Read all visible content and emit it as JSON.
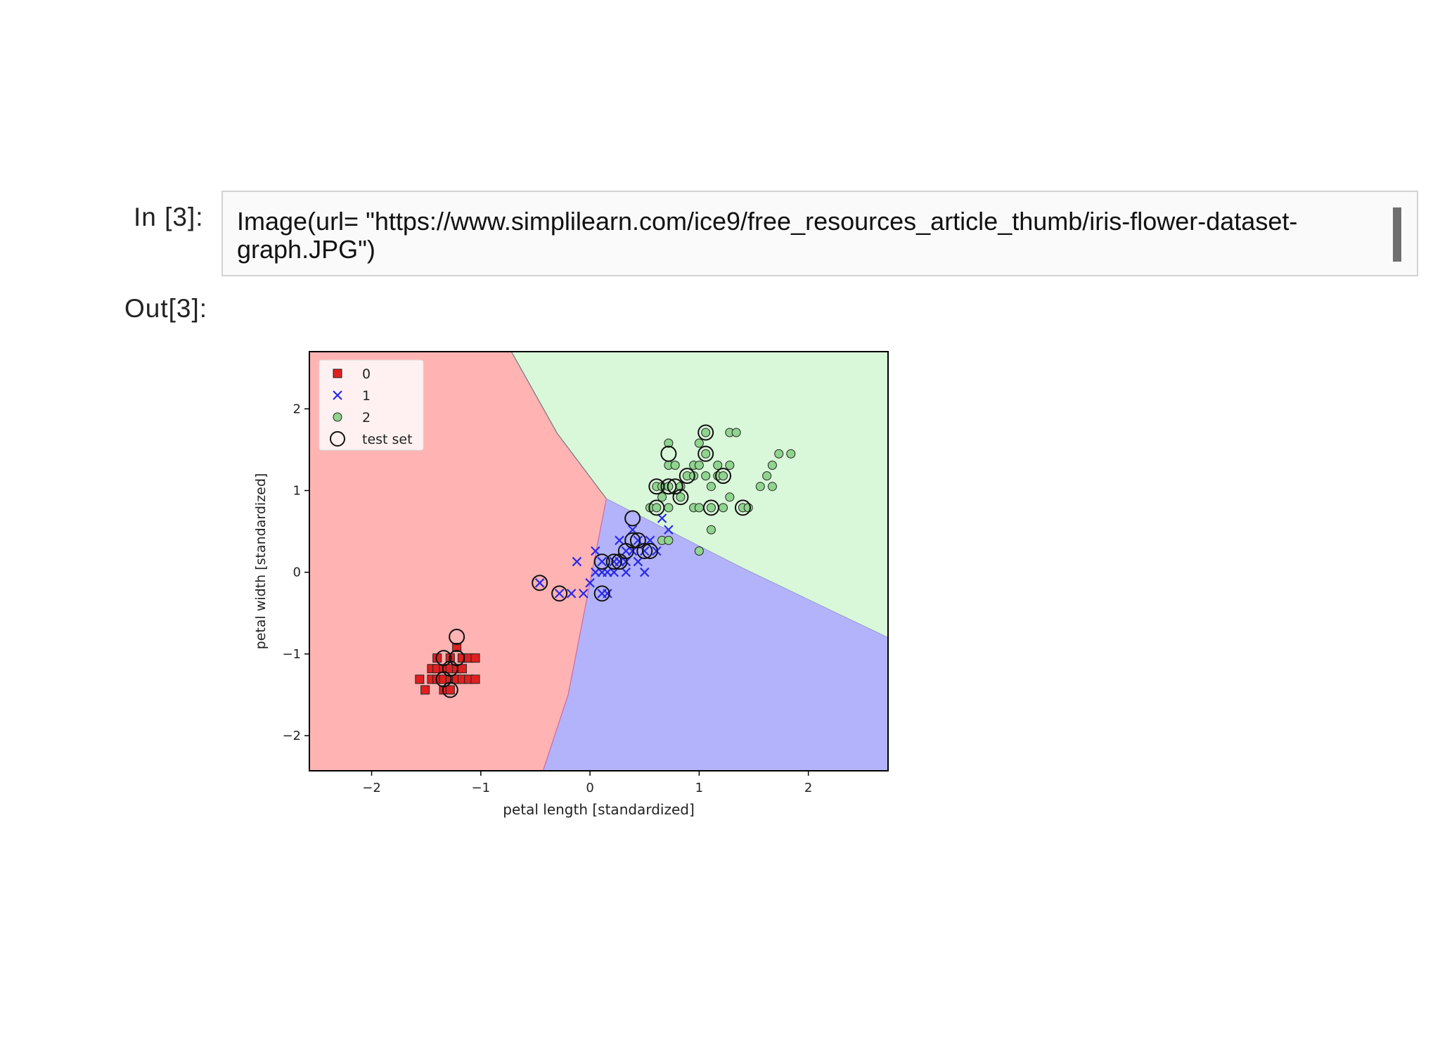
{
  "notebook": {
    "input_prompt": "In [3]:",
    "output_prompt": "Out[3]:",
    "code_line_1": "Image(url= \"https://www.simplilearn.com/ice9/free_resources_article_thumb/iris-flower-dataset-",
    "code_line_2": "graph.JPG\")"
  },
  "colors": {
    "region_0": "#ffb3b3",
    "region_1": "#b3b3fb",
    "region_2": "#d9f7d9",
    "class_0": "#e02020",
    "class_1": "#2a2ae8",
    "class_2": "#8fd48f"
  },
  "chart_data": {
    "type": "scatter",
    "xlabel": "petal length [standardized]",
    "ylabel": "petal width [standardized]",
    "xlim": [
      -2.57,
      2.73
    ],
    "ylim": [
      -2.43,
      2.7
    ],
    "xticks": [
      -2,
      -1,
      0,
      1,
      2
    ],
    "yticks": [
      -2,
      -1,
      0,
      1,
      2
    ],
    "xtick_labels": [
      "−2",
      "−1",
      "0",
      "1",
      "2"
    ],
    "ytick_labels": [
      "−2",
      "−1",
      "0",
      "1",
      "2"
    ],
    "grid": false,
    "legend_position": "top-left",
    "legend": [
      "0",
      "1",
      "2",
      "test set"
    ],
    "decision_boundary_0_1": [
      [
        -0.43,
        -2.43
      ],
      [
        -0.2,
        -1.5
      ],
      [
        0.15,
        0.9
      ]
    ],
    "decision_boundary_0_2": [
      [
        -0.72,
        2.7
      ],
      [
        -0.3,
        1.7
      ],
      [
        0.15,
        0.9
      ]
    ],
    "decision_boundary_1_2": [
      [
        0.15,
        0.9
      ],
      [
        1.4,
        0.05
      ],
      [
        2.73,
        -0.8
      ]
    ],
    "series": [
      {
        "name": "0",
        "marker": "square",
        "points": [
          [
            -1.56,
            -1.31
          ],
          [
            -1.51,
            -1.44
          ],
          [
            -1.45,
            -1.31
          ],
          [
            -1.45,
            -1.18
          ],
          [
            -1.4,
            -1.31
          ],
          [
            -1.4,
            -1.05
          ],
          [
            -1.4,
            -1.18
          ],
          [
            -1.34,
            -1.31
          ],
          [
            -1.34,
            -1.18
          ],
          [
            -1.34,
            -1.44
          ],
          [
            -1.28,
            -1.31
          ],
          [
            -1.28,
            -1.05
          ],
          [
            -1.28,
            -1.18
          ],
          [
            -1.28,
            -1.44
          ],
          [
            -1.22,
            -1.31
          ],
          [
            -1.22,
            -1.18
          ],
          [
            -1.17,
            -1.31
          ],
          [
            -1.17,
            -1.05
          ],
          [
            -1.17,
            -1.18
          ],
          [
            -1.22,
            -0.92
          ],
          [
            -1.11,
            -1.05
          ],
          [
            -1.11,
            -1.31
          ],
          [
            -1.05,
            -1.05
          ],
          [
            -1.05,
            -1.31
          ]
        ]
      },
      {
        "name": "1",
        "marker": "x",
        "points": [
          [
            -0.46,
            -0.13
          ],
          [
            -0.28,
            -0.26
          ],
          [
            -0.17,
            -0.26
          ],
          [
            -0.12,
            0.13
          ],
          [
            -0.06,
            -0.26
          ],
          [
            0.0,
            -0.13
          ],
          [
            0.05,
            0.0
          ],
          [
            0.05,
            0.26
          ],
          [
            0.11,
            0.0
          ],
          [
            0.11,
            0.13
          ],
          [
            0.11,
            -0.26
          ],
          [
            0.16,
            0.0
          ],
          [
            0.16,
            -0.26
          ],
          [
            0.22,
            0.13
          ],
          [
            0.22,
            0.0
          ],
          [
            0.27,
            0.13
          ],
          [
            0.27,
            0.39
          ],
          [
            0.33,
            0.13
          ],
          [
            0.33,
            0.26
          ],
          [
            0.33,
            0.0
          ],
          [
            0.39,
            0.26
          ],
          [
            0.39,
            0.52
          ],
          [
            0.44,
            0.13
          ],
          [
            0.44,
            0.39
          ],
          [
            0.5,
            0.26
          ],
          [
            0.5,
            0.0
          ],
          [
            0.55,
            0.39
          ],
          [
            0.61,
            0.26
          ],
          [
            0.66,
            0.66
          ],
          [
            0.72,
            0.52
          ]
        ]
      },
      {
        "name": "2",
        "marker": "circle",
        "points": [
          [
            0.55,
            0.79
          ],
          [
            0.61,
            0.79
          ],
          [
            0.61,
            1.05
          ],
          [
            0.66,
            0.92
          ],
          [
            0.66,
            1.05
          ],
          [
            0.66,
            0.39
          ],
          [
            0.72,
            0.79
          ],
          [
            0.72,
            0.39
          ],
          [
            0.72,
            1.05
          ],
          [
            0.72,
            1.31
          ],
          [
            0.72,
            1.58
          ],
          [
            0.78,
            1.31
          ],
          [
            0.83,
            0.92
          ],
          [
            0.83,
            1.05
          ],
          [
            0.89,
            1.18
          ],
          [
            0.95,
            1.18
          ],
          [
            0.95,
            1.31
          ],
          [
            0.95,
            0.79
          ],
          [
            1.0,
            1.31
          ],
          [
            1.0,
            0.79
          ],
          [
            1.0,
            1.58
          ],
          [
            1.0,
            0.26
          ],
          [
            1.06,
            1.18
          ],
          [
            1.06,
            1.45
          ],
          [
            1.06,
            1.71
          ],
          [
            1.11,
            0.79
          ],
          [
            1.11,
            1.05
          ],
          [
            1.11,
            0.52
          ],
          [
            1.17,
            1.18
          ],
          [
            1.17,
            1.31
          ],
          [
            1.22,
            1.18
          ],
          [
            1.22,
            0.79
          ],
          [
            1.28,
            1.71
          ],
          [
            1.28,
            0.92
          ],
          [
            1.28,
            1.31
          ],
          [
            1.34,
            1.71
          ],
          [
            1.4,
            0.79
          ],
          [
            1.45,
            0.79
          ],
          [
            1.56,
            1.05
          ],
          [
            1.62,
            1.18
          ],
          [
            1.67,
            1.31
          ],
          [
            1.67,
            1.05
          ],
          [
            1.73,
            1.45
          ],
          [
            1.84,
            1.45
          ]
        ]
      }
    ],
    "test_set": [
      [
        -1.28,
        -1.44
      ],
      [
        -1.34,
        -1.31
      ],
      [
        -1.34,
        -1.05
      ],
      [
        -1.22,
        -1.05
      ],
      [
        -1.28,
        -1.18
      ],
      [
        -1.22,
        -0.79
      ],
      [
        -0.46,
        -0.13
      ],
      [
        -0.28,
        -0.26
      ],
      [
        0.11,
        0.13
      ],
      [
        0.11,
        -0.26
      ],
      [
        0.22,
        0.13
      ],
      [
        0.27,
        0.13
      ],
      [
        0.33,
        0.26
      ],
      [
        0.39,
        0.39
      ],
      [
        0.44,
        0.39
      ],
      [
        0.5,
        0.26
      ],
      [
        0.55,
        0.26
      ],
      [
        0.39,
        0.66
      ],
      [
        0.61,
        0.79
      ],
      [
        0.61,
        1.05
      ],
      [
        0.72,
        1.05
      ],
      [
        0.78,
        1.05
      ],
      [
        0.83,
        0.92
      ],
      [
        0.72,
        1.45
      ],
      [
        0.89,
        1.18
      ],
      [
        1.06,
        1.45
      ],
      [
        1.06,
        1.71
      ],
      [
        1.11,
        0.79
      ],
      [
        1.22,
        1.18
      ],
      [
        1.4,
        0.79
      ]
    ]
  }
}
